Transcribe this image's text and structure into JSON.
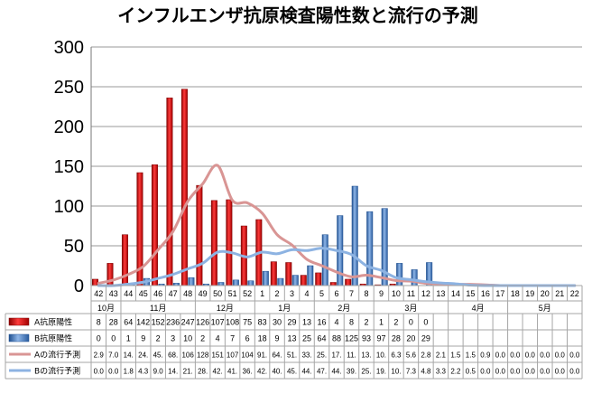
{
  "chart_data": {
    "type": "bar",
    "title": "インフルエンザ抗原検査陽性数と流行の予測",
    "ylim": [
      0,
      300
    ],
    "yticks": [
      "0",
      "50",
      "100",
      "150",
      "200",
      "250",
      "300"
    ],
    "grid": true,
    "categories": [
      "42",
      "43",
      "44",
      "45",
      "46",
      "47",
      "48",
      "49",
      "50",
      "51",
      "52",
      "1",
      "2",
      "3",
      "4",
      "5",
      "6",
      "7",
      "8",
      "9",
      "10",
      "11",
      "12",
      "13",
      "14",
      "15",
      "16",
      "17",
      "18",
      "19",
      "20",
      "21",
      "22"
    ],
    "months": [
      {
        "label": "10月",
        "start": 0,
        "end": 2
      },
      {
        "label": "11月",
        "start": 2,
        "end": 7
      },
      {
        "label": "12月",
        "start": 7,
        "end": 11
      },
      {
        "label": "1月",
        "start": 11,
        "end": 15
      },
      {
        "label": "2月",
        "start": 15,
        "end": 19
      },
      {
        "label": "3月",
        "start": 19,
        "end": 24
      },
      {
        "label": "4月",
        "start": 24,
        "end": 28
      },
      {
        "label": "5月",
        "start": 28,
        "end": 33
      }
    ],
    "series": [
      {
        "name": "A抗原陽性",
        "kind": "bar",
        "color": "#cc0000",
        "values": [
          8,
          28,
          64,
          142,
          152,
          236,
          247,
          126,
          107,
          108,
          75,
          83,
          30,
          29,
          13,
          16,
          4,
          8,
          2,
          1,
          2,
          0,
          0,
          null,
          null,
          null,
          null,
          null,
          null,
          null,
          null,
          null,
          null
        ],
        "labels": [
          "8",
          "28",
          "64",
          "142",
          "152",
          "236",
          "247",
          "126",
          "107",
          "108",
          "75",
          "83",
          "30",
          "29",
          "13",
          "16",
          "4",
          "8",
          "2",
          "1",
          "2",
          "0",
          "0",
          "",
          "",
          "",
          "",
          "",
          "",
          "",
          "",
          "",
          ""
        ]
      },
      {
        "name": "B抗原陽性",
        "kind": "bar",
        "color": "#3a6fb5",
        "values": [
          0,
          0,
          1,
          9,
          2,
          3,
          10,
          2,
          4,
          7,
          6,
          18,
          9,
          13,
          25,
          64,
          88,
          125,
          93,
          97,
          28,
          20,
          29,
          null,
          null,
          null,
          null,
          null,
          null,
          null,
          null,
          null,
          null
        ],
        "labels": [
          "0",
          "0",
          "1",
          "9",
          "2",
          "3",
          "10",
          "2",
          "4",
          "7",
          "6",
          "18",
          "9",
          "13",
          "25",
          "64",
          "88",
          "125",
          "93",
          "97",
          "28",
          "20",
          "29",
          "",
          "",
          "",
          "",
          "",
          "",
          "",
          "",
          "",
          ""
        ]
      },
      {
        "name": "Aの流行予測",
        "kind": "line",
        "color": "#d99594",
        "values": [
          2.9,
          7.0,
          14,
          24,
          45,
          68,
          106,
          128,
          151,
          107,
          104,
          91,
          64,
          51,
          33,
          25,
          17,
          11,
          13,
          10,
          6.3,
          5.6,
          2.8,
          2.1,
          1.5,
          1.5,
          0.9,
          0,
          0,
          0,
          0,
          0,
          0
        ],
        "labels": [
          "2.9",
          "7.0",
          "14.",
          "24.",
          "45.",
          "68.",
          "106",
          "128",
          "151",
          "107",
          "104",
          "91.",
          "64.",
          "51.",
          "33.",
          "25.",
          "17.",
          "11.",
          "13.",
          "10.",
          "6.3",
          "5.6",
          "2.8",
          "2.1",
          "1.5",
          "1.5",
          "0.9",
          "0.0",
          "0.0",
          "0.0",
          "0.0",
          "0.0",
          "0.0"
        ]
      },
      {
        "name": "Bの流行予測",
        "kind": "line",
        "color": "#8db3e2",
        "values": [
          0,
          0,
          1.8,
          4.3,
          9.0,
          14,
          21,
          28,
          42,
          41,
          36,
          42,
          40,
          45,
          44,
          47,
          44,
          39,
          25,
          19,
          10,
          7.3,
          4.8,
          3.3,
          2.2,
          0.5,
          0,
          0,
          0,
          0,
          0,
          0,
          0
        ],
        "labels": [
          "0.0",
          "0.0",
          "1.8",
          "4.3",
          "9.0",
          "14.",
          "21.",
          "28.",
          "42.",
          "41.",
          "36.",
          "42.",
          "40.",
          "45.",
          "44.",
          "47.",
          "44.",
          "39.",
          "25.",
          "19.",
          "10.",
          "7.3",
          "4.8",
          "3.3",
          "2.2",
          "0.5",
          "0.0",
          "0.0",
          "0.0",
          "0.0",
          "0.0",
          "0.0",
          "0.0"
        ]
      }
    ]
  }
}
